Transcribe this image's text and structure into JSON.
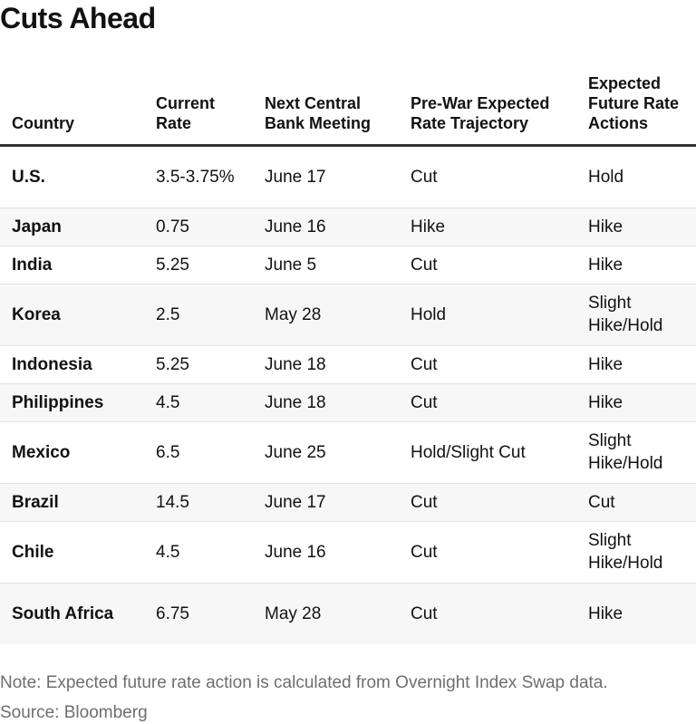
{
  "title": "Cuts Ahead",
  "chart_data": {
    "type": "table",
    "title": "Cuts Ahead",
    "columns": [
      "Country",
      "Current Rate",
      "Next Central Bank Meeting",
      "Pre-War Expected Rate Trajectory",
      "Expected Future Rate Actions"
    ],
    "rows": [
      [
        "U.S.",
        "3.5-3.75%",
        "June 17",
        "Cut",
        "Hold"
      ],
      [
        "Japan",
        "0.75",
        "June 16",
        "Hike",
        "Hike"
      ],
      [
        "India",
        "5.25",
        "June 5",
        "Cut",
        "Hike"
      ],
      [
        "Korea",
        "2.5",
        "May 28",
        "Hold",
        "Slight Hike/Hold"
      ],
      [
        "Indonesia",
        "5.25",
        "June 18",
        "Cut",
        "Hike"
      ],
      [
        "Philippines",
        "4.5",
        "June 18",
        "Cut",
        "Hike"
      ],
      [
        "Mexico",
        "6.5",
        "June 25",
        "Hold/Slight Cut",
        "Slight Hike/Hold"
      ],
      [
        "Brazil",
        "14.5",
        "June 17",
        "Cut",
        "Cut"
      ],
      [
        "Chile",
        "4.5",
        "June 16",
        "Cut",
        "Slight Hike/Hold"
      ],
      [
        "South Africa",
        "6.75",
        "May 28",
        "Cut",
        "Hike"
      ]
    ]
  },
  "footer": {
    "note": "Note: Expected future rate action is calculated from Overnight Index Swap data.",
    "source": "Source: Bloomberg"
  }
}
